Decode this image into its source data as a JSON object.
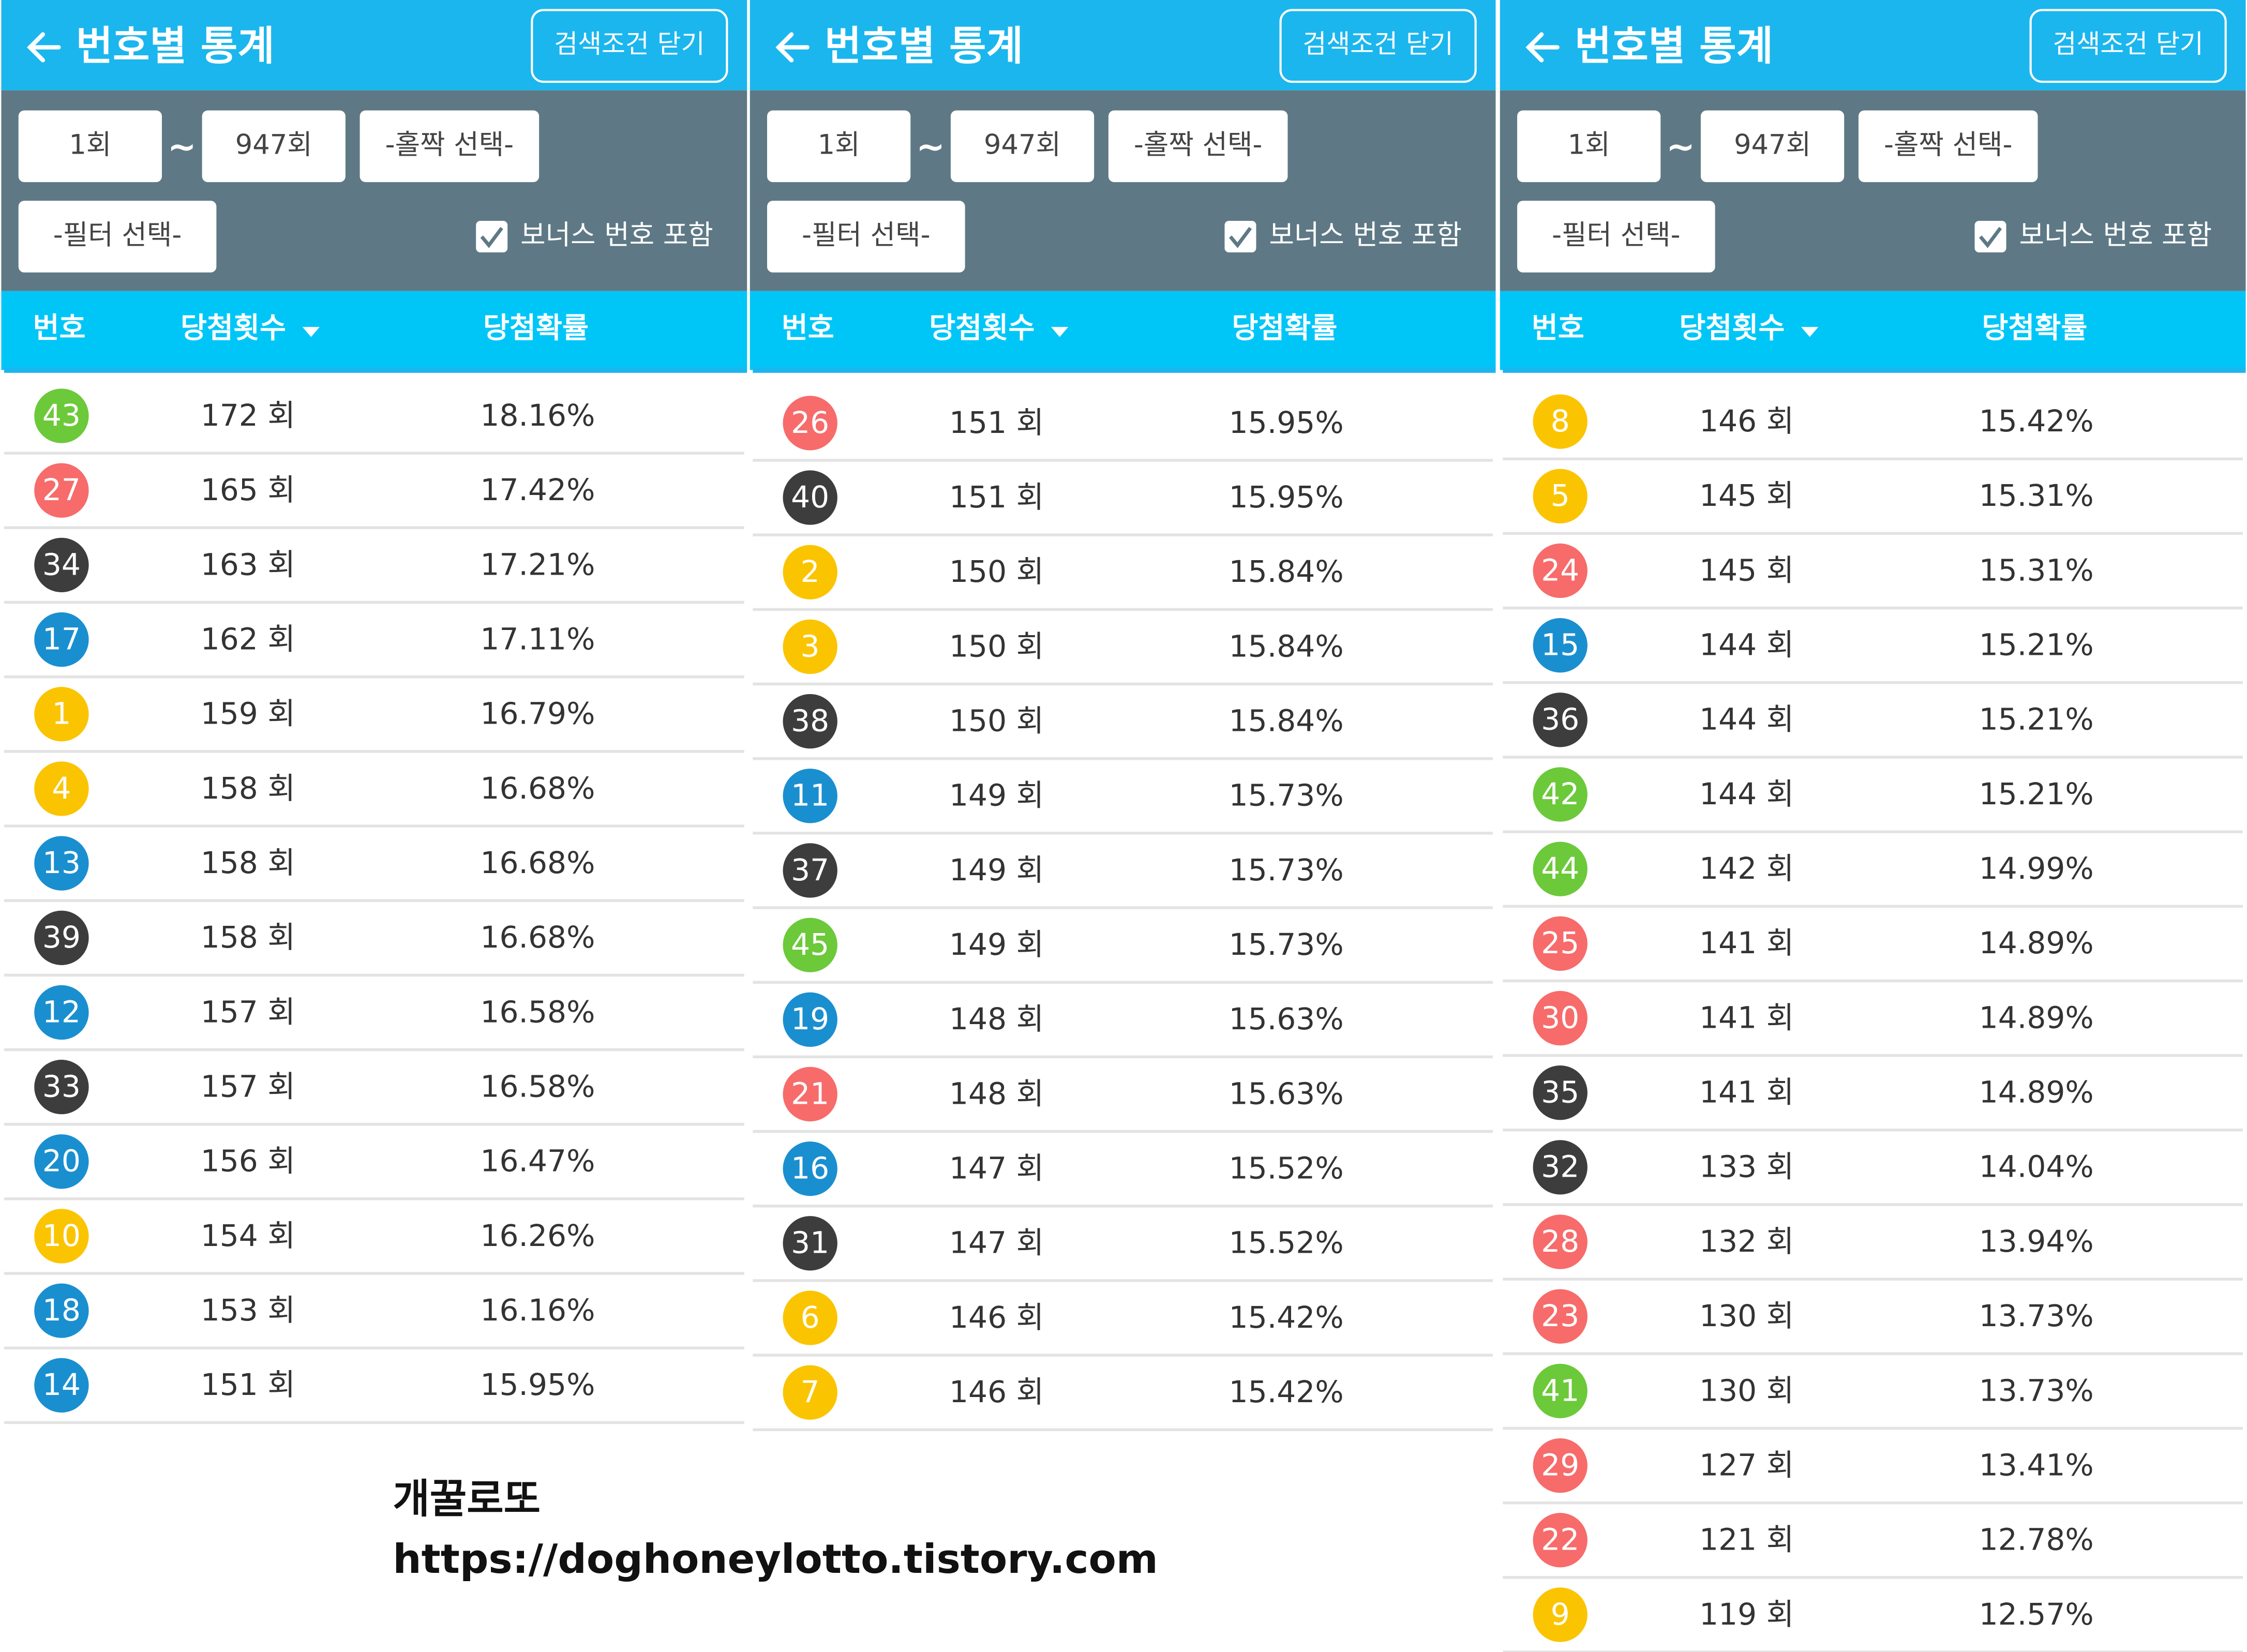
{
  "panels": [
    {
      "title": "번호별 통계",
      "close_button": "검색조건 닫기",
      "from": "1회",
      "tilde": "~",
      "to": "947회",
      "parity": "-홀짝 선택-",
      "filter": "-필터 선택-",
      "bonus_label": "보너스 번호 포함",
      "columns": [
        "번호",
        "당첨횟수",
        "당첨확률"
      ],
      "rows": [
        [
          "43",
          "172 회",
          "18.16%",
          "#6cc93a"
        ],
        [
          "27",
          "165 회",
          "17.42%",
          "#f76b6b"
        ],
        [
          "34",
          "163 회",
          "17.21%",
          "#3d3d3d"
        ],
        [
          "17",
          "162 회",
          "17.11%",
          "#1a8fd0"
        ],
        [
          "1",
          "159 회",
          "16.79%",
          "#fbc400"
        ],
        [
          "4",
          "158 회",
          "16.68%",
          "#fbc400"
        ],
        [
          "13",
          "158 회",
          "16.68%",
          "#1a8fd0"
        ],
        [
          "39",
          "158 회",
          "16.68%",
          "#3d3d3d"
        ],
        [
          "12",
          "157 회",
          "16.58%",
          "#1a8fd0"
        ],
        [
          "33",
          "157 회",
          "16.58%",
          "#3d3d3d"
        ],
        [
          "20",
          "156 회",
          "16.47%",
          "#1a8fd0"
        ],
        [
          "10",
          "154 회",
          "16.26%",
          "#fbc400"
        ],
        [
          "18",
          "153 회",
          "16.16%",
          "#1a8fd0"
        ],
        [
          "14",
          "151 회",
          "15.95%",
          "#1a8fd0"
        ]
      ]
    },
    {
      "title": "번호별 통계",
      "close_button": "검색조건 닫기",
      "from": "1회",
      "tilde": "~",
      "to": "947회",
      "parity": "-홀짝 선택-",
      "filter": "-필터 선택-",
      "bonus_label": "보너스 번호 포함",
      "columns": [
        "번호",
        "당첨횟수",
        "당첨확률"
      ],
      "rows": [
        [
          "26",
          "151 회",
          "15.95%",
          "#f76b6b"
        ],
        [
          "40",
          "151 회",
          "15.95%",
          "#3d3d3d"
        ],
        [
          "2",
          "150 회",
          "15.84%",
          "#fbc400"
        ],
        [
          "3",
          "150 회",
          "15.84%",
          "#fbc400"
        ],
        [
          "38",
          "150 회",
          "15.84%",
          "#3d3d3d"
        ],
        [
          "11",
          "149 회",
          "15.73%",
          "#1a8fd0"
        ],
        [
          "37",
          "149 회",
          "15.73%",
          "#3d3d3d"
        ],
        [
          "45",
          "149 회",
          "15.73%",
          "#6cc93a"
        ],
        [
          "19",
          "148 회",
          "15.63%",
          "#1a8fd0"
        ],
        [
          "21",
          "148 회",
          "15.63%",
          "#f76b6b"
        ],
        [
          "16",
          "147 회",
          "15.52%",
          "#1a8fd0"
        ],
        [
          "31",
          "147 회",
          "15.52%",
          "#3d3d3d"
        ],
        [
          "6",
          "146 회",
          "15.42%",
          "#fbc400"
        ],
        [
          "7",
          "146 회",
          "15.42%",
          "#fbc400"
        ]
      ]
    },
    {
      "title": "번호별 통계",
      "close_button": "검색조건 닫기",
      "from": "1회",
      "tilde": "~",
      "to": "947회",
      "parity": "-홀짝 선택-",
      "filter": "-필터 선택-",
      "bonus_label": "보너스 번호 포함",
      "columns": [
        "번호",
        "당첨횟수",
        "당첨확률"
      ],
      "rows": [
        [
          "8",
          "146 회",
          "15.42%",
          "#fbc400"
        ],
        [
          "5",
          "145 회",
          "15.31%",
          "#fbc400"
        ],
        [
          "24",
          "145 회",
          "15.31%",
          "#f76b6b"
        ],
        [
          "15",
          "144 회",
          "15.21%",
          "#1a8fd0"
        ],
        [
          "36",
          "144 회",
          "15.21%",
          "#3d3d3d"
        ],
        [
          "42",
          "144 회",
          "15.21%",
          "#6cc93a"
        ],
        [
          "44",
          "142 회",
          "14.99%",
          "#6cc93a"
        ],
        [
          "25",
          "141 회",
          "14.89%",
          "#f76b6b"
        ],
        [
          "30",
          "141 회",
          "14.89%",
          "#f76b6b"
        ],
        [
          "35",
          "141 회",
          "14.89%",
          "#3d3d3d"
        ],
        [
          "32",
          "133 회",
          "14.04%",
          "#3d3d3d"
        ],
        [
          "28",
          "132 회",
          "13.94%",
          "#f76b6b"
        ],
        [
          "23",
          "130 회",
          "13.73%",
          "#f76b6b"
        ],
        [
          "41",
          "130 회",
          "13.73%",
          "#6cc93a"
        ],
        [
          "29",
          "127 회",
          "13.41%",
          "#f76b6b"
        ],
        [
          "22",
          "121 회",
          "12.78%",
          "#f76b6b"
        ],
        [
          "9",
          "119 회",
          "12.57%",
          "#fbc400"
        ]
      ]
    }
  ],
  "watermark": {
    "name": "개꿀로또",
    "url": "https://doghoneylotto.tistory.com"
  }
}
